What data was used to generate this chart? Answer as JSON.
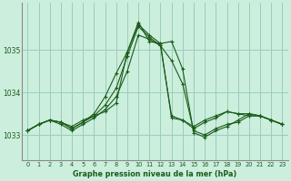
{
  "title": "Graphe pression niveau de la mer (hPa)",
  "background_color": "#cceedd",
  "grid_color": "#99ccbb",
  "line_color": "#1a5c1a",
  "axis_color": "#888888",
  "x_ticks": [
    0,
    1,
    2,
    3,
    4,
    5,
    6,
    7,
    8,
    9,
    10,
    11,
    12,
    13,
    14,
    15,
    16,
    17,
    18,
    19,
    20,
    21,
    22,
    23
  ],
  "y_ticks": [
    1033,
    1034,
    1035
  ],
  "ylim": [
    1032.4,
    1036.1
  ],
  "xlim": [
    -0.5,
    23.5
  ],
  "series": [
    [
      1033.1,
      1033.25,
      1033.35,
      1033.3,
      1033.2,
      1033.35,
      1033.45,
      1033.55,
      1033.75,
      1034.95,
      1035.65,
      1035.2,
      1035.15,
      1035.2,
      1034.55,
      1033.05,
      1032.95,
      1033.1,
      1033.2,
      1033.35,
      1033.5,
      1033.45,
      1033.35,
      1033.25
    ],
    [
      1033.1,
      1033.25,
      1033.35,
      1033.3,
      1033.15,
      1033.3,
      1033.5,
      1033.9,
      1034.45,
      1034.95,
      1035.6,
      1035.35,
      1035.15,
      1033.4,
      1033.35,
      1033.15,
      1033.3,
      1033.4,
      1033.55,
      1033.5,
      1033.45,
      1033.45,
      1033.35,
      1033.25
    ],
    [
      1033.1,
      1033.25,
      1033.35,
      1033.25,
      1033.1,
      1033.25,
      1033.4,
      1033.6,
      1033.9,
      1034.5,
      1035.35,
      1035.25,
      1035.1,
      1034.75,
      1034.2,
      1033.1,
      1033.0,
      1033.15,
      1033.25,
      1033.3,
      1033.45,
      1033.45,
      1033.35,
      1033.25
    ],
    [
      1033.1,
      1033.25,
      1033.35,
      1033.3,
      1033.15,
      1033.3,
      1033.45,
      1033.7,
      1034.1,
      1034.85,
      1035.55,
      1035.3,
      1035.1,
      1033.45,
      1033.35,
      1033.2,
      1033.35,
      1033.45,
      1033.55,
      1033.5,
      1033.5,
      1033.45,
      1033.35,
      1033.25
    ]
  ]
}
